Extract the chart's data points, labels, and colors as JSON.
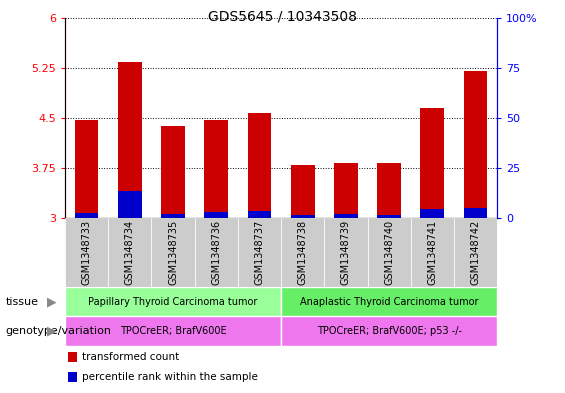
{
  "title": "GDS5645 / 10343508",
  "samples": [
    "GSM1348733",
    "GSM1348734",
    "GSM1348735",
    "GSM1348736",
    "GSM1348737",
    "GSM1348738",
    "GSM1348739",
    "GSM1348740",
    "GSM1348741",
    "GSM1348742"
  ],
  "transformed_counts": [
    4.47,
    5.33,
    4.38,
    4.47,
    4.57,
    3.8,
    3.82,
    3.82,
    4.65,
    5.2
  ],
  "percentile_ranks_axis": [
    3.07,
    3.4,
    3.06,
    3.09,
    3.1,
    3.04,
    3.06,
    3.04,
    3.14,
    3.15
  ],
  "bar_base": 3.0,
  "ylim_left": [
    3.0,
    6.0
  ],
  "ylim_right": [
    0,
    100
  ],
  "yticks_left": [
    3.0,
    3.75,
    4.5,
    5.25,
    6.0
  ],
  "ytick_labels_left": [
    "3",
    "3.75",
    "4.5",
    "5.25",
    "6"
  ],
  "yticks_right": [
    0,
    25,
    50,
    75,
    100
  ],
  "ytick_labels_right": [
    "0",
    "25",
    "50",
    "75",
    "100%"
  ],
  "bar_color_red": "#cc0000",
  "bar_color_blue": "#0000cc",
  "tissue_groups": [
    {
      "label": "Papillary Thyroid Carcinoma tumor",
      "start": 0,
      "end": 5,
      "color": "#99ff99"
    },
    {
      "label": "Anaplastic Thyroid Carcinoma tumor",
      "start": 5,
      "end": 10,
      "color": "#66ee66"
    }
  ],
  "genotype_groups": [
    {
      "label": "TPOCreER; BrafV600E",
      "start": 0,
      "end": 5,
      "color": "#ee77ee"
    },
    {
      "label": "TPOCreER; BrafV600E; p53 -/-",
      "start": 5,
      "end": 10,
      "color": "#ee77ee"
    }
  ],
  "tissue_label": "tissue",
  "genotype_label": "genotype/variation",
  "legend_items": [
    {
      "label": "transformed count",
      "color": "#cc0000"
    },
    {
      "label": "percentile rank within the sample",
      "color": "#0000cc"
    }
  ],
  "title_fontsize": 10,
  "tick_fontsize": 8,
  "sample_fontsize": 7,
  "row_label_fontsize": 8,
  "row_text_fontsize": 7,
  "legend_fontsize": 7.5
}
